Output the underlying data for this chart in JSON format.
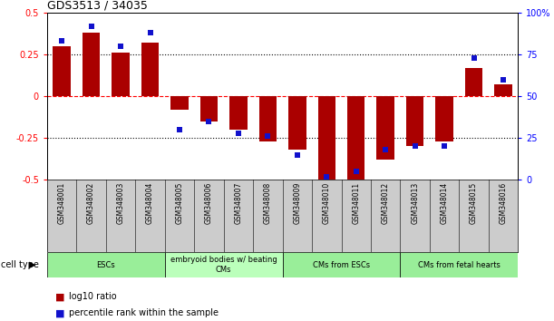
{
  "title": "GDS3513 / 34035",
  "samples": [
    "GSM348001",
    "GSM348002",
    "GSM348003",
    "GSM348004",
    "GSM348005",
    "GSM348006",
    "GSM348007",
    "GSM348008",
    "GSM348009",
    "GSM348010",
    "GSM348011",
    "GSM348012",
    "GSM348013",
    "GSM348014",
    "GSM348015",
    "GSM348016"
  ],
  "log10_ratio": [
    0.3,
    0.38,
    0.26,
    0.32,
    -0.08,
    -0.15,
    -0.2,
    -0.27,
    -0.32,
    -0.5,
    -0.5,
    -0.38,
    -0.3,
    -0.27,
    0.17,
    0.07
  ],
  "percentile_rank": [
    83,
    92,
    80,
    88,
    30,
    35,
    28,
    26,
    15,
    2,
    5,
    18,
    20,
    20,
    73,
    60
  ],
  "bar_color": "#aa0000",
  "dot_color": "#1111cc",
  "ylim_left": [
    -0.5,
    0.5
  ],
  "ylim_right": [
    0,
    100
  ],
  "yticks_left": [
    -0.5,
    -0.25,
    0,
    0.25,
    0.5
  ],
  "ytick_labels_left": [
    "-0.5",
    "-0.25",
    "0",
    "0.25",
    "0.5"
  ],
  "yticks_right": [
    0,
    25,
    50,
    75,
    100
  ],
  "ytick_labels_right": [
    "0",
    "25",
    "50",
    "75",
    "100%"
  ],
  "cell_groups": [
    {
      "label": "ESCs",
      "start": 0,
      "end": 3,
      "color": "#99ee99"
    },
    {
      "label": "embryoid bodies w/ beating\nCMs",
      "start": 4,
      "end": 7,
      "color": "#bbffbb"
    },
    {
      "label": "CMs from ESCs",
      "start": 8,
      "end": 11,
      "color": "#99ee99"
    },
    {
      "label": "CMs from fetal hearts",
      "start": 12,
      "end": 15,
      "color": "#99ee99"
    }
  ],
  "legend_entries": [
    {
      "label": "log10 ratio",
      "color": "#aa0000"
    },
    {
      "label": "percentile rank within the sample",
      "color": "#1111cc"
    }
  ],
  "cell_type_label": "cell type",
  "figsize": [
    6.11,
    3.54
  ],
  "dpi": 100
}
